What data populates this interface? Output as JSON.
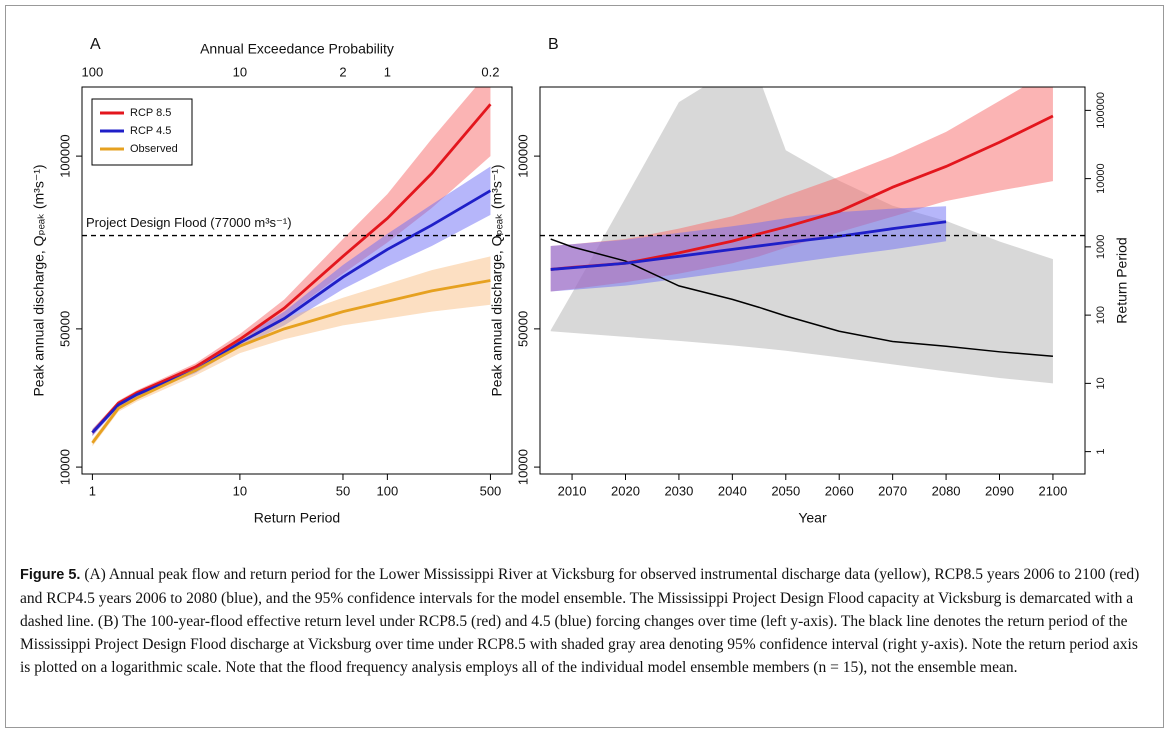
{
  "chart_data": [
    {
      "type": "line",
      "title": "A",
      "xlabel": "Return Period",
      "ylabel": "Peak annual discharge, Qₚₑₐₖ (m³s⁻¹)",
      "x2label": "Annual Exceedance Probability",
      "xscale": "log",
      "xlim": [
        0.85,
        700
      ],
      "xticks": [
        1,
        10,
        50,
        100,
        500
      ],
      "x2scale": "log",
      "x2lim": [
        117.6,
        0.1429
      ],
      "x2ticks": [
        100,
        10,
        2,
        1,
        0.2
      ],
      "ylim": [
        8000,
        120000
      ],
      "yticks": [
        10000,
        50000,
        100000
      ],
      "hline": 77000,
      "hline_label": "Project Design Flood (77000 m³s⁻¹)",
      "legend": "top-left",
      "grid": false,
      "x": [
        1,
        1.5,
        2,
        5,
        10,
        20,
        50,
        100,
        200,
        500
      ],
      "series": [
        {
          "name": "RCP 8.5",
          "color": "#e3161d",
          "band_color": "rgba(247,105,105,0.5)",
          "values": [
            20000,
            28500,
            31500,
            39000,
            47000,
            56000,
            71000,
            82000,
            95000,
            115000
          ],
          "lower": [
            19000,
            27800,
            30800,
            38000,
            45500,
            53500,
            66000,
            75000,
            85000,
            100000
          ],
          "upper": [
            21000,
            29200,
            32200,
            40000,
            48500,
            58500,
            76000,
            89000,
            105000,
            125000
          ]
        },
        {
          "name": "RCP 4.5",
          "color": "#1f1fc8",
          "band_color": "rgba(110,110,245,0.5)",
          "values": [
            20000,
            28000,
            31000,
            38000,
            46000,
            53000,
            65000,
            73000,
            80000,
            90000
          ],
          "lower": [
            19000,
            27300,
            30300,
            37200,
            44800,
            51000,
            61500,
            68000,
            74000,
            83000
          ],
          "upper": [
            21000,
            28700,
            31700,
            38800,
            47200,
            55000,
            68500,
            77500,
            86000,
            97000
          ]
        },
        {
          "name": "Observed",
          "color": "#e6a120",
          "band_color": "rgba(248,185,120,0.45)",
          "values": [
            17000,
            27000,
            30000,
            38000,
            45000,
            50000,
            55000,
            58000,
            61000,
            64000
          ],
          "lower": [
            16000,
            26000,
            29000,
            36500,
            43000,
            47000,
            51000,
            53000,
            55000,
            57000
          ],
          "upper": [
            18000,
            28000,
            31000,
            39500,
            47000,
            53000,
            59000,
            63000,
            67000,
            71000
          ]
        }
      ]
    },
    {
      "type": "line",
      "title": "B",
      "xlabel": "Year",
      "ylabel": "Peak annual discharge, Qₚₑₐₖ (m³s⁻¹)",
      "y2label": "Return Period",
      "xscale": "linear",
      "xlim": [
        2004,
        2106
      ],
      "xticks": [
        2010,
        2020,
        2030,
        2040,
        2050,
        2060,
        2070,
        2080,
        2090,
        2100
      ],
      "ylim": [
        8000,
        120000
      ],
      "yticks": [
        10000,
        50000,
        100000
      ],
      "y2scale": "log",
      "y2lim": [
        0.47,
        220000
      ],
      "y2ticks": [
        1,
        10,
        100,
        1000,
        10000,
        100000
      ],
      "hline": 77000,
      "grid": false,
      "x": [
        2006,
        2010,
        2020,
        2030,
        2040,
        2045,
        2050,
        2060,
        2070,
        2080,
        2090,
        2100
      ],
      "series": [
        {
          "axis": "y2",
          "color": "#000000",
          "band_color": "rgba(200,200,200,0.7)",
          "values": [
            1300,
            1000,
            620,
            268,
            170,
            130,
            97,
            58,
            41,
            35,
            29,
            25
          ],
          "lower": [
            58,
            55,
            48,
            42,
            36,
            33,
            30,
            24,
            19,
            15,
            12,
            10
          ],
          "upper": [
            60,
            210,
            5200,
            132000,
            400000,
            300000,
            26000,
            9300,
            4000,
            2400,
            1200,
            660
          ]
        },
        {
          "color": "#e3161d",
          "band_color": "rgba(247,105,105,0.5)",
          "values": [
            67200,
            67800,
            69000,
            72000,
            75400,
            77500,
            79500,
            84000,
            91000,
            97000,
            104000,
            111600
          ],
          "lower": [
            60800,
            61500,
            63500,
            66000,
            69000,
            71000,
            73500,
            78000,
            82500,
            87000,
            90000,
            92750
          ],
          "upper": [
            74000,
            74500,
            76000,
            79000,
            82600,
            85500,
            88500,
            94000,
            100000,
            107000,
            116000,
            125000
          ]
        },
        {
          "color": "#1f1fc8",
          "band_color": "rgba(110,110,245,0.5)",
          "values": [
            67200,
            67700,
            69000,
            71000,
            73000,
            74000,
            75000,
            76800,
            79000,
            81000,
            null,
            null
          ],
          "lower": [
            60800,
            61300,
            62500,
            64500,
            66650,
            67700,
            68800,
            71000,
            73000,
            75350,
            null,
            null
          ],
          "upper": [
            74000,
            74500,
            75800,
            77800,
            79700,
            80800,
            82000,
            83800,
            84800,
            85500,
            null,
            null
          ]
        }
      ]
    }
  ],
  "caption": {
    "label": "Figure 5.",
    "text": "(A) Annual peak flow and return period for the Lower Mississippi River at Vicksburg for observed instrumental discharge data (yellow), RCP8.5 years 2006 to 2100 (red) and RCP4.5 years 2006 to 2080 (blue), and the 95% confidence intervals for the model ensemble. The Mississippi Project Design Flood capacity at Vicksburg is demarcated with a dashed line. (B) The 100-year-flood effective return level under RCP8.5 (red) and 4.5 (blue) forcing changes over time (left y-axis). The black line denotes the return period of the Mississippi Project Design Flood discharge at Vicksburg over time under RCP8.5 with shaded gray area denoting 95% confidence interval (right y-axis). Note the return period axis is plotted on a logarithmic scale. Note that the flood frequency analysis employs all of the individual model ensemble members (n = 15), not the ensemble mean."
  }
}
